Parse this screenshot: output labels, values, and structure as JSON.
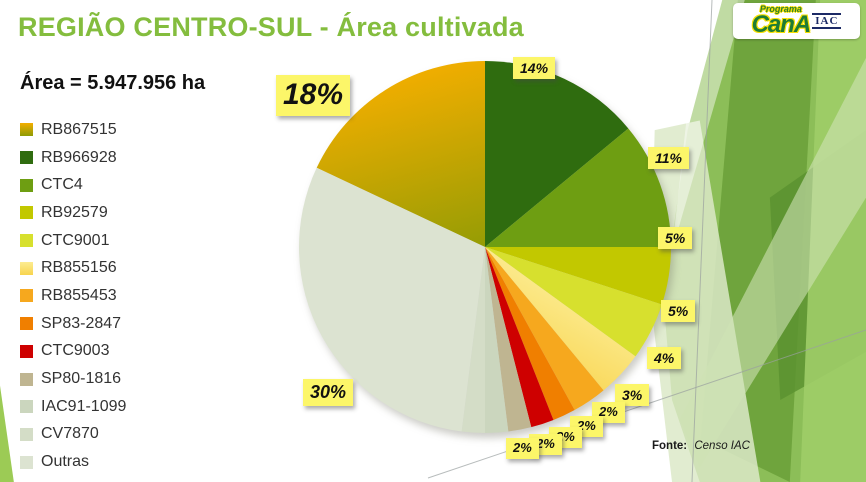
{
  "title": "REGIÃO CENTRO-SUL - Área cultivada",
  "area_label": "Área = 5.947.956 ha",
  "source": {
    "prefix": "Fonte:",
    "text": "Censo IAC"
  },
  "logo": {
    "top": "Programa",
    "main": "CanA",
    "badge": "IAC"
  },
  "chart_data": {
    "type": "pie",
    "title": "REGIÃO CENTRO-SUL - Área cultivada",
    "unit": "%",
    "total_area_ha": "5.947.956",
    "direction": "clockwise",
    "start_angle_deg": -64.8,
    "legend_position": "left",
    "label_style": "yellow-sticky",
    "slices": [
      {
        "label": "RB867515",
        "value": 18,
        "color": "#E9A800",
        "gradient": [
          "#F3AE00",
          "#8E9B05"
        ]
      },
      {
        "label": "RB966928",
        "value": 14,
        "color": "#2F6C0F"
      },
      {
        "label": "CTC4",
        "value": 11,
        "color": "#6E9E12"
      },
      {
        "label": "RB92579",
        "value": 5,
        "color": "#C2C800"
      },
      {
        "label": "CTC9001",
        "value": 5,
        "color": "#D7E02E"
      },
      {
        "label": "RB855156",
        "value": 4,
        "color": "#FAE672",
        "gradient": [
          "#FCEC92",
          "#F8D44E"
        ]
      },
      {
        "label": "RB855453",
        "value": 3,
        "color": "#F6A81E"
      },
      {
        "label": "SP83-2847",
        "value": 2,
        "color": "#F07F00"
      },
      {
        "label": "CTC9003",
        "value": 2,
        "color": "#CE0000"
      },
      {
        "label": "SP80-1816",
        "value": 2,
        "color": "#BFB591"
      },
      {
        "label": "IAC91-1099",
        "value": 2,
        "color": "#CBD6BE"
      },
      {
        "label": "CV7870",
        "value": 2,
        "color": "#D4DDC7"
      },
      {
        "label": "Outras",
        "value": 30,
        "color": "#DCE3D1"
      }
    ]
  }
}
